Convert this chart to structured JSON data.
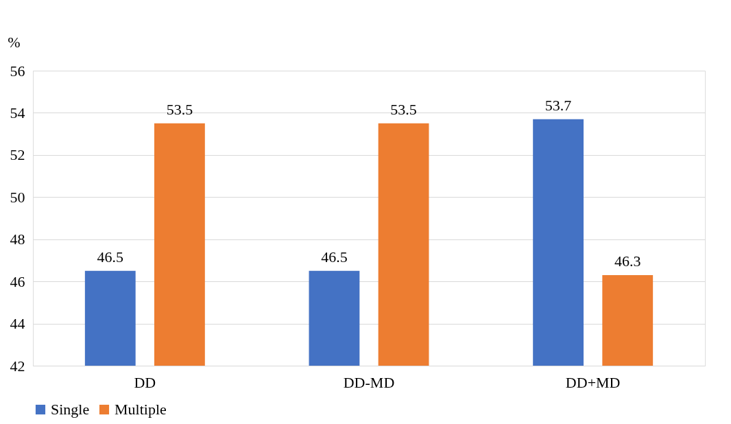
{
  "chart_data": {
    "type": "bar",
    "ylabel": "%",
    "categories": [
      "DD",
      "DD-MD",
      "DD+MD"
    ],
    "series": [
      {
        "name": "Single",
        "color": "#4472c4",
        "values": [
          46.5,
          46.5,
          53.7
        ]
      },
      {
        "name": "Multiple",
        "color": "#ed7d31",
        "values": [
          53.5,
          53.5,
          46.3
        ]
      }
    ],
    "ylim": [
      42,
      56
    ],
    "yticks": [
      42,
      44,
      46,
      48,
      50,
      52,
      54,
      56
    ],
    "grid": "y",
    "legend": "bottom",
    "data_labels": true
  }
}
